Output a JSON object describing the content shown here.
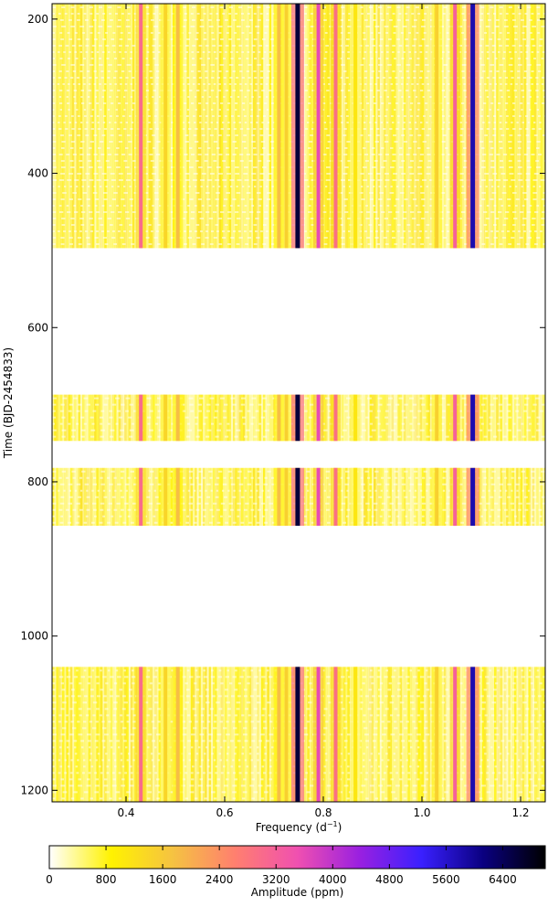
{
  "chart_data": {
    "type": "heatmap",
    "title": "",
    "xlabel": "Frequency (d$^{-1}$)",
    "xlabel_text": "Frequency (d",
    "xlabel_sup": "−1",
    "xlabel_close": ")",
    "ylabel": "Time (BJD-2454833)",
    "xlim": [
      0.25,
      1.25
    ],
    "ylim": [
      180,
      1215
    ],
    "y_inverted": true,
    "x_ticks": [
      0.4,
      0.6,
      0.8,
      1.0,
      1.2
    ],
    "x_tick_labels": [
      "0.4",
      "0.6",
      "0.8",
      "1.0",
      "1.2"
    ],
    "y_ticks": [
      200,
      400,
      600,
      800,
      1000,
      1200
    ],
    "y_tick_labels": [
      "200",
      "400",
      "600",
      "800",
      "1000",
      "1200"
    ],
    "grid": false,
    "time_segments": [
      {
        "start": 180,
        "end": 497
      },
      {
        "start": 687,
        "end": 747
      },
      {
        "start": 782,
        "end": 857
      },
      {
        "start": 1040,
        "end": 1215
      }
    ],
    "frequency_peaks": [
      {
        "freq": 0.43,
        "amplitude": 3000
      },
      {
        "freq": 0.48,
        "amplitude": 1400
      },
      {
        "freq": 0.505,
        "amplitude": 1800
      },
      {
        "freq": 0.71,
        "amplitude": 1800
      },
      {
        "freq": 0.725,
        "amplitude": 1500
      },
      {
        "freq": 0.748,
        "amplitude": 6600
      },
      {
        "freq": 0.79,
        "amplitude": 3600
      },
      {
        "freq": 0.825,
        "amplitude": 2900
      },
      {
        "freq": 0.865,
        "amplitude": 1100
      },
      {
        "freq": 1.03,
        "amplitude": 1500
      },
      {
        "freq": 1.067,
        "amplitude": 3200
      },
      {
        "freq": 1.103,
        "amplitude": 5800
      }
    ],
    "colorbar": {
      "label": "Amplitude (ppm)",
      "range": [
        0,
        7000
      ],
      "ticks": [
        0,
        800,
        1600,
        2400,
        3200,
        4000,
        4800,
        5600,
        6400
      ],
      "tick_labels": [
        "0",
        "800",
        "1600",
        "2400",
        "3200",
        "4000",
        "4800",
        "5600",
        "6400"
      ],
      "colormap": "gnuplot2-reversed",
      "colors": [
        "#ffffff",
        "#fff200",
        "#f5c242",
        "#ff7f6f",
        "#f050b0",
        "#9a20e0",
        "#3a20ff",
        "#0a0080",
        "#000000"
      ]
    }
  }
}
